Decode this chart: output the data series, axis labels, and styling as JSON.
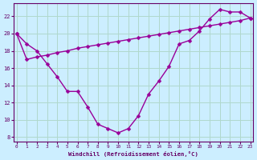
{
  "xlabel": "Windchill (Refroidissement éolien,°C)",
  "background_color": "#cceeff",
  "grid_color": "#b0d8cc",
  "line_color": "#990099",
  "x_hours": [
    0,
    1,
    2,
    3,
    4,
    5,
    6,
    7,
    8,
    9,
    10,
    11,
    12,
    13,
    14,
    15,
    16,
    17,
    18,
    19,
    20,
    21,
    22,
    23
  ],
  "curve_y": [
    20.0,
    18.8,
    18.0,
    16.5,
    15.0,
    13.3,
    13.3,
    11.5,
    9.5,
    9.0,
    8.5,
    9.0,
    10.5,
    13.0,
    14.5,
    16.2,
    18.8,
    19.2,
    20.3,
    21.7,
    22.8,
    22.5,
    22.5,
    21.8
  ],
  "straight_y": [
    20.0,
    17.0,
    17.3,
    17.5,
    17.8,
    18.0,
    18.3,
    18.5,
    18.7,
    18.9,
    19.1,
    19.3,
    19.5,
    19.7,
    19.9,
    20.1,
    20.3,
    20.5,
    20.7,
    20.9,
    21.1,
    21.3,
    21.5,
    21.8
  ],
  "ylim": [
    7.5,
    23.5
  ],
  "yticks": [
    8,
    10,
    12,
    14,
    16,
    18,
    20,
    22
  ],
  "xlim": [
    -0.3,
    23.3
  ],
  "xticks": [
    0,
    1,
    2,
    3,
    4,
    5,
    6,
    7,
    8,
    9,
    10,
    11,
    12,
    13,
    14,
    15,
    16,
    17,
    18,
    19,
    20,
    21,
    22,
    23
  ]
}
